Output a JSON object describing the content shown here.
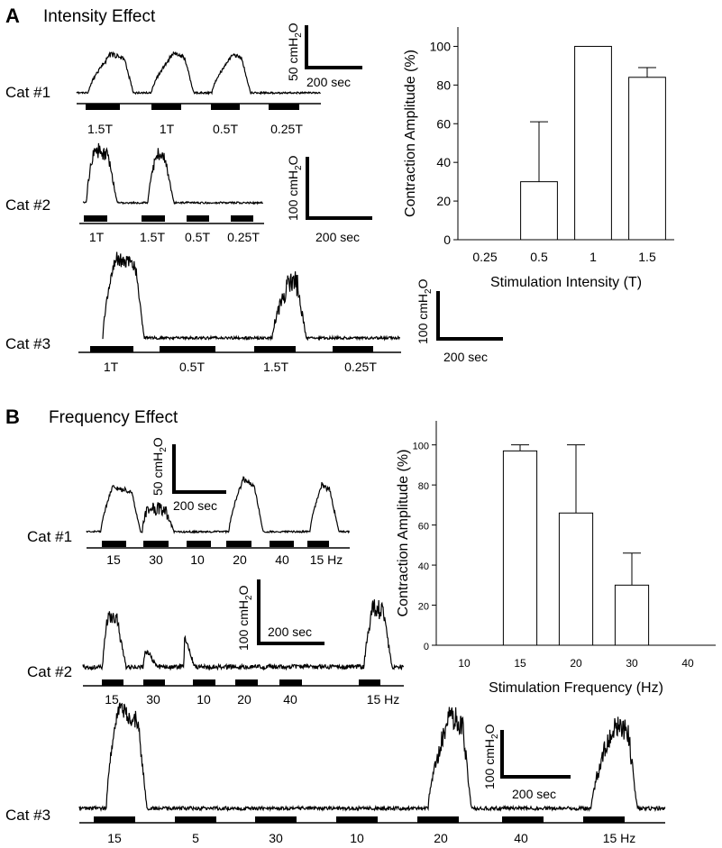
{
  "panelA": {
    "letter": "A",
    "title": "Intensity Effect",
    "cat1": {
      "label": "Cat #1",
      "stims": [
        "1.5T",
        "1T",
        "0.5T",
        "0.25T"
      ],
      "scale_y": "50 cmH",
      "scale_y_sub": "2",
      "scale_y_tail": "O",
      "scale_x": "200 sec"
    },
    "cat2": {
      "label": "Cat #2",
      "stims": [
        "1T",
        "1.5T",
        "0.5T",
        "0.25T"
      ],
      "scale_y": "100 cmH",
      "scale_y_sub": "2",
      "scale_y_tail": "O",
      "scale_x": "200 sec"
    },
    "cat3": {
      "label": "Cat #3",
      "stims": [
        "1T",
        "0.5T",
        "1.5T",
        "0.25T"
      ],
      "scale_y": "100 cmH",
      "scale_y_sub": "2",
      "scale_y_tail": "O",
      "scale_x": "200 sec"
    }
  },
  "panelB": {
    "letter": "B",
    "title": "Frequency Effect",
    "cat1": {
      "label": "Cat #1",
      "stims": [
        "15",
        "30",
        "10",
        "20",
        "40",
        "15 Hz"
      ],
      "scale_y": "50 cmH",
      "scale_y_sub": "2",
      "scale_y_tail": "O",
      "scale_x": "200 sec"
    },
    "cat2": {
      "label": "Cat #2",
      "stims": [
        "15",
        "30",
        "10",
        "20",
        "40",
        "15 Hz"
      ],
      "scale_y": "100 cmH",
      "scale_y_sub": "2",
      "scale_y_tail": "O",
      "scale_x": "200 sec"
    },
    "cat3": {
      "label": "Cat #3",
      "stims": [
        "15",
        "5",
        "30",
        "10",
        "20",
        "40",
        "15 Hz"
      ],
      "scale_y": "100 cmH",
      "scale_y_sub": "2",
      "scale_y_tail": "O",
      "scale_x": "200 sec"
    }
  },
  "chart_data": [
    {
      "type": "bar",
      "title": "",
      "xlabel": "Stimulation Intensity (T)",
      "ylabel": "Contraction Amplitude (%)",
      "categories": [
        "0.25",
        "0.5",
        "1",
        "1.5"
      ],
      "values": [
        0,
        30,
        100,
        84
      ],
      "errors": [
        0,
        31,
        0,
        5
      ],
      "ylim": [
        0,
        110
      ],
      "yticks": [
        0,
        20,
        40,
        60,
        80,
        100
      ],
      "grid": false
    },
    {
      "type": "bar",
      "title": "",
      "xlabel": "Stimulation Frequency (Hz)",
      "ylabel": "Contraction Amplitude (%)",
      "categories": [
        "10",
        "15",
        "20",
        "30",
        "40"
      ],
      "values": [
        0,
        97,
        66,
        30,
        0
      ],
      "errors": [
        0,
        3,
        34,
        16,
        0
      ],
      "ylim": [
        0,
        112
      ],
      "yticks": [
        0,
        20,
        40,
        60,
        80,
        100
      ],
      "grid": false
    }
  ]
}
